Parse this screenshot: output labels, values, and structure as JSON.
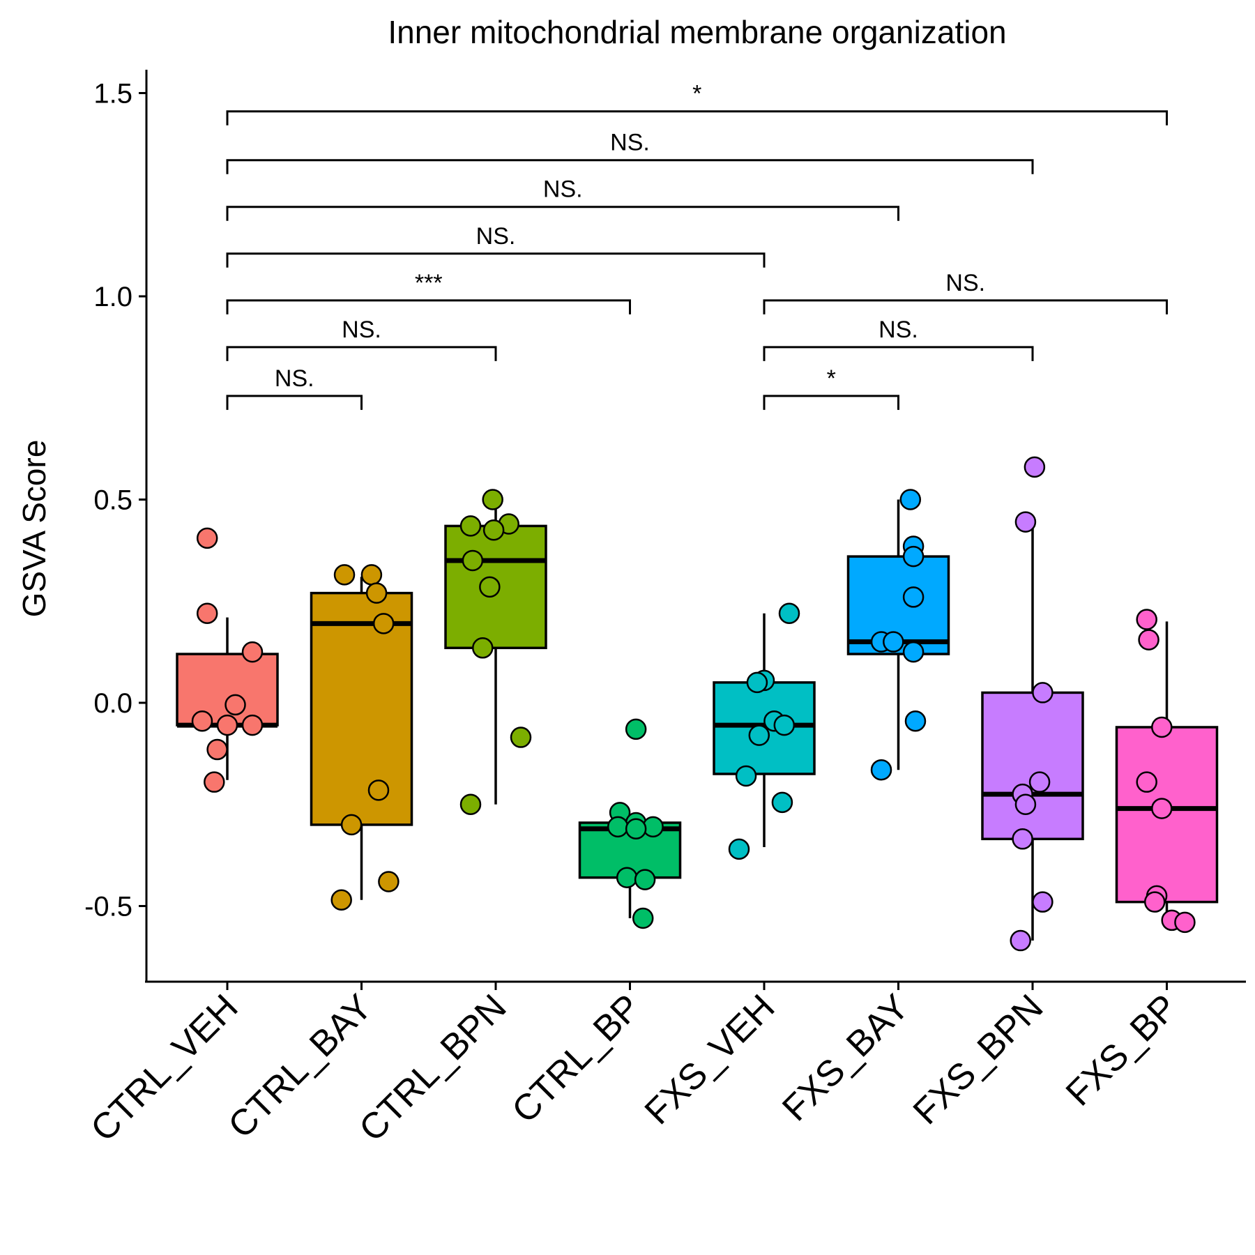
{
  "chart_data": {
    "type": "box",
    "title": "Inner mitochondrial membrane organization",
    "ylabel": "GSVA Score",
    "xlabel": "",
    "ylim": [
      -0.68,
      1.56
    ],
    "yticks": [
      -0.5,
      0.0,
      0.5,
      1.0,
      1.5
    ],
    "ytick_labels": [
      "-0.5",
      "0.0",
      "0.5",
      "1.0",
      "1.5"
    ],
    "categories": [
      "CTRL_VEH",
      "CTRL_BAY",
      "CTRL_BPN",
      "CTRL_BP",
      "FXS_VEH",
      "FXS_BAY",
      "FXS_BPN",
      "FXS_BP"
    ],
    "colors": [
      "#F8766D",
      "#CD9600",
      "#7CAE00",
      "#00BE67",
      "#00BFC4",
      "#00A9FF",
      "#C77CFF",
      "#FF61CC"
    ],
    "boxes": [
      {
        "name": "CTRL_VEH",
        "whisker_low": -0.19,
        "q1": -0.055,
        "median": -0.055,
        "q3": 0.12,
        "whisker_high": 0.21
      },
      {
        "name": "CTRL_BAY",
        "whisker_low": -0.485,
        "q1": -0.3,
        "median": 0.195,
        "q3": 0.27,
        "whisker_high": 0.31
      },
      {
        "name": "CTRL_BPN",
        "whisker_low": -0.25,
        "q1": 0.135,
        "median": 0.35,
        "q3": 0.435,
        "whisker_high": 0.5
      },
      {
        "name": "CTRL_BP",
        "whisker_low": -0.53,
        "q1": -0.43,
        "median": -0.31,
        "q3": -0.295,
        "whisker_high": -0.295
      },
      {
        "name": "FXS_VEH",
        "whisker_low": -0.355,
        "q1": -0.175,
        "median": -0.055,
        "q3": 0.05,
        "whisker_high": 0.22
      },
      {
        "name": "FXS_BAY",
        "whisker_low": -0.165,
        "q1": 0.12,
        "median": 0.15,
        "q3": 0.36,
        "whisker_high": 0.5
      },
      {
        "name": "FXS_BPN",
        "whisker_low": -0.585,
        "q1": -0.335,
        "median": -0.225,
        "q3": 0.025,
        "whisker_high": 0.45
      },
      {
        "name": "FXS_BP",
        "whisker_low": -0.535,
        "q1": -0.49,
        "median": -0.26,
        "q3": -0.06,
        "whisker_high": 0.2
      }
    ],
    "points": [
      {
        "group": 0,
        "values": [
          0.405,
          0.22,
          0.125,
          -0.005,
          -0.045,
          -0.055,
          -0.055,
          -0.115,
          -0.195
        ],
        "offsets": [
          -0.2,
          -0.2,
          0.25,
          0.08,
          -0.25,
          0.0,
          0.25,
          -0.1,
          -0.13
        ]
      },
      {
        "group": 1,
        "values": [
          0.315,
          0.315,
          0.27,
          0.195,
          -0.215,
          -0.3,
          -0.44,
          -0.485
        ],
        "offsets": [
          -0.17,
          0.1,
          0.15,
          0.22,
          0.17,
          -0.1,
          0.27,
          -0.2
        ]
      },
      {
        "group": 2,
        "values": [
          0.5,
          0.44,
          0.435,
          0.425,
          0.35,
          0.285,
          0.135,
          -0.085,
          -0.25
        ],
        "offsets": [
          -0.03,
          0.13,
          -0.25,
          -0.02,
          -0.23,
          -0.06,
          -0.13,
          0.25,
          -0.25
        ]
      },
      {
        "group": 3,
        "values": [
          -0.065,
          -0.27,
          -0.295,
          -0.305,
          -0.305,
          -0.31,
          -0.43,
          -0.435,
          -0.53
        ],
        "offsets": [
          0.06,
          -0.1,
          0.06,
          0.23,
          -0.12,
          0.06,
          -0.03,
          0.15,
          0.13
        ]
      },
      {
        "group": 4,
        "values": [
          0.22,
          0.055,
          0.05,
          -0.045,
          -0.055,
          -0.08,
          -0.18,
          -0.245,
          -0.36
        ],
        "offsets": [
          0.25,
          0.0,
          -0.07,
          0.1,
          0.2,
          -0.05,
          -0.18,
          0.18,
          -0.25
        ]
      },
      {
        "group": 5,
        "values": [
          0.5,
          0.385,
          0.36,
          0.26,
          0.15,
          0.15,
          0.125,
          -0.045,
          -0.165
        ],
        "offsets": [
          0.12,
          0.15,
          0.15,
          0.15,
          -0.17,
          -0.05,
          0.15,
          0.17,
          -0.17
        ]
      },
      {
        "group": 6,
        "values": [
          0.58,
          0.445,
          0.025,
          -0.195,
          -0.225,
          -0.25,
          -0.335,
          -0.49,
          -0.585
        ],
        "offsets": [
          0.02,
          -0.07,
          0.1,
          0.07,
          -0.1,
          -0.07,
          -0.1,
          0.1,
          -0.12
        ]
      },
      {
        "group": 7,
        "values": [
          0.205,
          0.155,
          -0.06,
          -0.195,
          -0.26,
          -0.475,
          -0.49,
          -0.535,
          -0.54
        ],
        "offsets": [
          -0.2,
          -0.18,
          -0.05,
          -0.2,
          -0.05,
          -0.1,
          -0.12,
          0.05,
          0.18
        ]
      }
    ],
    "comparisons": [
      {
        "from": 0,
        "to": 1,
        "y": 0.755,
        "label": "NS."
      },
      {
        "from": 0,
        "to": 2,
        "y": 0.875,
        "label": "NS."
      },
      {
        "from": 0,
        "to": 3,
        "y": 0.99,
        "label": "***"
      },
      {
        "from": 0,
        "to": 4,
        "y": 1.105,
        "label": "NS."
      },
      {
        "from": 0,
        "to": 5,
        "y": 1.22,
        "label": "NS."
      },
      {
        "from": 0,
        "to": 6,
        "y": 1.335,
        "label": "NS."
      },
      {
        "from": 0,
        "to": 7,
        "y": 1.455,
        "label": "*"
      },
      {
        "from": 4,
        "to": 5,
        "y": 0.755,
        "label": "*"
      },
      {
        "from": 4,
        "to": 6,
        "y": 0.875,
        "label": "NS."
      },
      {
        "from": 4,
        "to": 7,
        "y": 0.99,
        "label": "NS."
      }
    ]
  }
}
